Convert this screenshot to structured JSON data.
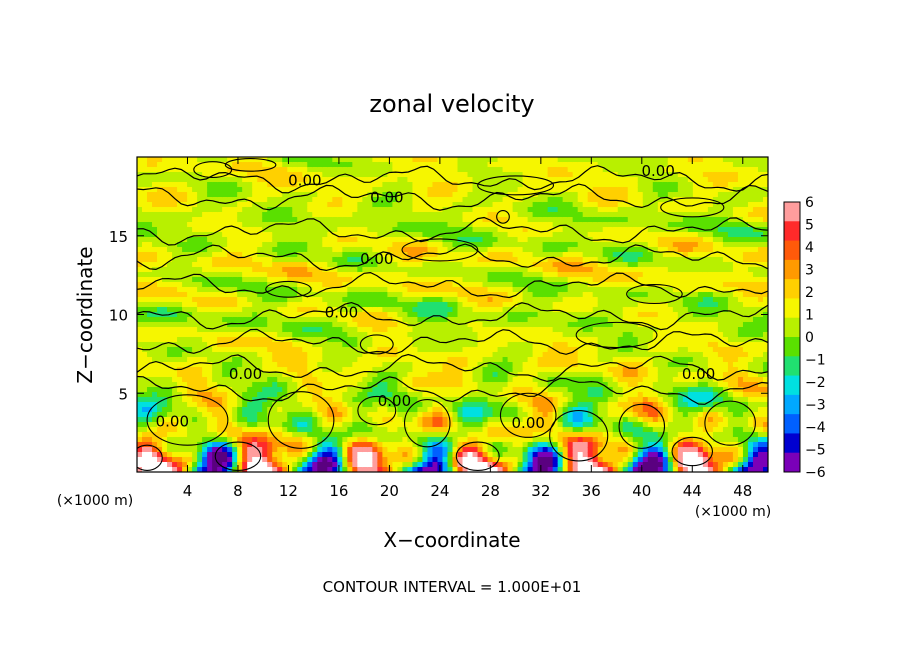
{
  "chart_data": {
    "type": "heatmap",
    "title": "zonal velocity",
    "xlabel": "X−coordinate",
    "ylabel": "Z−coordinate",
    "x_unit_left": "(×1000 m)",
    "x_unit_right": "(×1000 m)",
    "xlim": [
      0,
      50
    ],
    "ylim": [
      0,
      20
    ],
    "x_ticks": [
      4,
      8,
      12,
      16,
      20,
      24,
      28,
      32,
      36,
      40,
      44,
      48
    ],
    "x_tick_labels": [
      "4",
      "8",
      "12",
      "16",
      "20",
      "24",
      "28",
      "32",
      "36",
      "40",
      "44",
      "48"
    ],
    "y_ticks": [
      5,
      10,
      15
    ],
    "y_tick_labels": [
      "5",
      "10",
      "15"
    ],
    "colorbar": {
      "min": -6,
      "max": 6,
      "tick_labels": [
        "6",
        "5",
        "4",
        "3",
        "2",
        "1",
        "0",
        "−1",
        "−2",
        "−3",
        "−4",
        "−5",
        "−6"
      ],
      "colors": [
        "#ff9d9d",
        "#ff2a2a",
        "#ff5a0a",
        "#ff9a00",
        "#ffd000",
        "#f6f600",
        "#b8f000",
        "#5ae000",
        "#20e070",
        "#00e0e0",
        "#00a8ff",
        "#0060ff",
        "#0000d0",
        "#7a00b8"
      ]
    },
    "contour_labels": [
      "0.00",
      "0.00",
      "0.00",
      "0.00",
      "0.00",
      "0.00",
      "0.00",
      "0.00",
      "0.00",
      "0.00"
    ],
    "footer": "CONTOUR INTERVAL = 1.000E+01"
  }
}
